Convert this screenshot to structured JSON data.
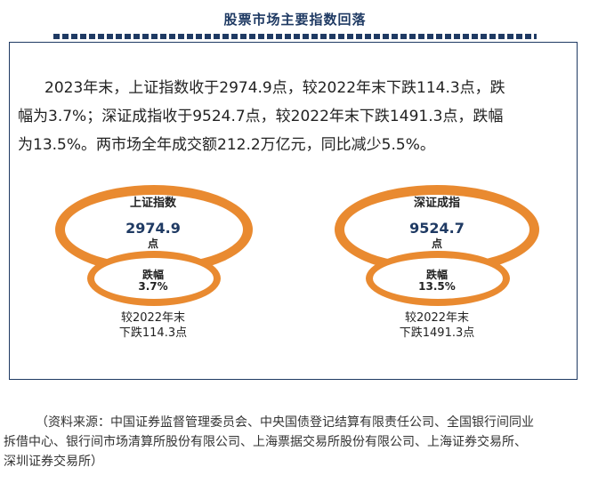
{
  "title": "股票市场主要指数回落",
  "paragraph": {
    "line1": "2023年末，上证指数收于2974.9点，较2022年末下跌114.3点，跌",
    "line2": "幅为3.7%；深证成指收于9524.7点，较2022年末下跌1491.3点，跌幅",
    "line3": "为13.5%。两市场全年成交额212.2万亿元，同比减少5.5%。"
  },
  "indices": [
    {
      "name": "上证指数",
      "value": "2974.9",
      "unit": "点",
      "drop_label": "跌幅",
      "drop_value": "3.7%",
      "caption_line1": "较2022年末",
      "caption_line2": "下跌114.3点"
    },
    {
      "name": "深证成指",
      "value": "9524.7",
      "unit": "点",
      "drop_label": "跌幅",
      "drop_value": "13.5%",
      "caption_line1": "较2022年末",
      "caption_line2": "下跌1491.3点"
    }
  ],
  "source": {
    "line1": "（资料来源：中国证券监督管理委员会、中央国债登记结算有限责任公司、全国银行间同业",
    "line2": "拆借中心、银行间市场清算所股份有限公司、上海票据交易所股份有限公司、上海证券交易所、",
    "line3": "深圳证券交易所）"
  },
  "colors": {
    "accent": "#e98a30",
    "navy": "#1f3a63"
  }
}
